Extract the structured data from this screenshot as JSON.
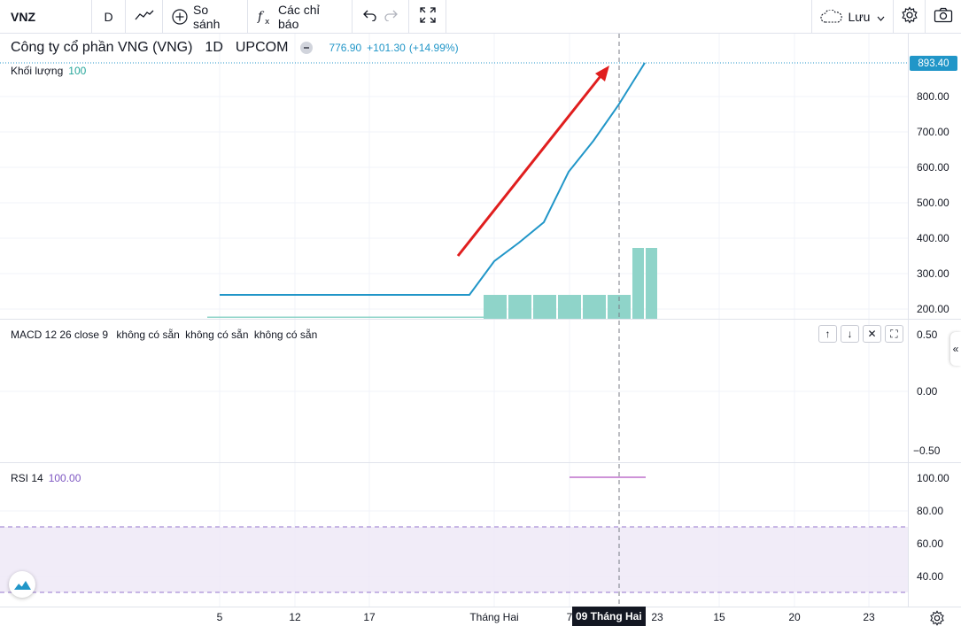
{
  "toolbar": {
    "symbol": "VNZ",
    "interval": "D",
    "compare_label": "So sánh",
    "indicators_label": "Các chỉ báo",
    "save_label": "Lưu"
  },
  "main_pane": {
    "title": "Công ty cổ phần VNG (VNG)",
    "interval": "1D",
    "exchange": "UPCOM",
    "last_price": "776.90",
    "change": "+101.30",
    "change_pct": "(+14.99%)",
    "current_price_badge": "893.40",
    "price_scale": [
      "800.00",
      "700.00",
      "600.00",
      "500.00",
      "400.00",
      "300.00",
      "200.00"
    ],
    "volume_label": "Khối lượng",
    "volume_value": "100"
  },
  "macd_pane": {
    "label": "MACD 12 26 close 9",
    "values": [
      "không có sẵn",
      "không có sẵn",
      "không có sẵn"
    ],
    "scale": [
      "0.50",
      "0.00",
      "−0.50"
    ]
  },
  "rsi_pane": {
    "label": "RSI 14",
    "value": "100.00",
    "scale": [
      "100.00",
      "80.00",
      "60.00",
      "40.00"
    ]
  },
  "time_axis": {
    "labels": [
      "5",
      "12",
      "17",
      "Tháng Hai",
      "7",
      "23",
      "15",
      "20",
      "23"
    ],
    "crosshair_label": "09 Tháng Hai"
  },
  "colors": {
    "price_line": "#2196c8",
    "volume_bars": "#8fd4c9",
    "rsi_band": "#7e57c2",
    "annotation_arrow": "#e01e1e"
  },
  "icons": [
    "chart-line-icon",
    "plus-circle-icon",
    "fx-icon",
    "undo-icon",
    "redo-icon",
    "fullscreen-icon",
    "cloud-icon",
    "chevron-down-icon",
    "gear-icon",
    "camera-icon",
    "arrow-up-icon",
    "arrow-down-icon",
    "close-icon",
    "maximize-icon",
    "logo-icon",
    "collapse-icon"
  ]
}
